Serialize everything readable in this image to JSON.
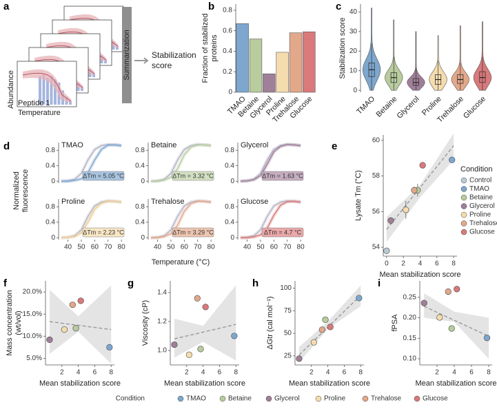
{
  "chart_data": [
    {
      "type": "schematic",
      "panel": "a",
      "labels": [
        "Abundance",
        "Peptide 1",
        "Temperature"
      ],
      "summary": "Summarization",
      "output": [
        "Stabilization",
        "score"
      ]
    },
    {
      "type": "bar",
      "panel": "b",
      "ylabel": [
        "Fraction of stabilized",
        "proteins"
      ],
      "categories": [
        "TMAO",
        "Betaine",
        "Glycerol",
        "Proline",
        "Trehalose",
        "Glucose"
      ],
      "values": [
        0.67,
        0.52,
        0.18,
        0.39,
        0.58,
        0.59
      ],
      "colors": [
        "#7ea7cf",
        "#b8cc9e",
        "#a07f98",
        "#f5dcae",
        "#e3a88a",
        "#d9797b"
      ],
      "ylim": [
        0,
        0.86
      ],
      "yticks": [
        0,
        0.2,
        0.4,
        0.6,
        0.8
      ]
    },
    {
      "type": "violin",
      "panel": "c",
      "ylabel": "Stabilization score",
      "categories": [
        "TMAO",
        "Betaine",
        "Glycerol",
        "Proline",
        "Trehalose",
        "Glucose"
      ],
      "colors": [
        "#7ea7cf",
        "#b8cc9e",
        "#a07f98",
        "#f5dcae",
        "#e3a88a",
        "#d9797b"
      ],
      "whisker_low": [
        0,
        0,
        0,
        0,
        0,
        0
      ],
      "q1": [
        7,
        4,
        2.5,
        3,
        3.5,
        4
      ],
      "median": [
        10.5,
        6.5,
        4,
        5.5,
        5.5,
        6.5
      ],
      "q3": [
        14,
        9,
        6,
        8,
        8,
        9.5
      ],
      "whisker_high": [
        24,
        17,
        11,
        15,
        14,
        17
      ],
      "max": [
        42,
        36,
        30,
        28,
        33,
        35
      ],
      "ylim": [
        -1,
        44
      ],
      "yticks": [
        0,
        10,
        20,
        30,
        40
      ]
    },
    {
      "type": "line",
      "panel": "d",
      "title": "TMAO",
      "ylabel": [
        "Normalized",
        "fluorescence"
      ],
      "xlabel": "Temperature (°C)",
      "x": [
        35,
        40,
        45,
        50,
        55,
        60,
        65,
        70,
        75,
        80
      ],
      "series": [
        {
          "color": "#b3b3c6",
          "values": [
            0,
            0.01,
            0.05,
            0.2,
            0.55,
            0.82,
            0.92,
            0.95,
            0.94,
            0.92
          ]
        },
        {
          "color": "#7ea7cf",
          "values": [
            0,
            0,
            0.02,
            0.06,
            0.22,
            0.55,
            0.82,
            0.93,
            0.94,
            0.92
          ]
        }
      ],
      "annotation": "ΔTm = 5.05 °C",
      "annotation_color": "#a9c4e0",
      "xlim": [
        33,
        82
      ],
      "ylim": [
        -0.05,
        1.0
      ],
      "yticks": [
        0,
        0.4,
        0.8
      ]
    },
    {
      "type": "line",
      "title": "Betaine",
      "x": [
        35,
        40,
        45,
        50,
        55,
        60,
        65,
        70,
        75,
        80
      ],
      "series": [
        {
          "color": "#b3b3c6",
          "values": [
            0,
            0.01,
            0.05,
            0.2,
            0.55,
            0.82,
            0.92,
            0.95,
            0.94,
            0.92
          ]
        },
        {
          "color": "#b8cc9e",
          "values": [
            0,
            0,
            0.03,
            0.1,
            0.32,
            0.68,
            0.88,
            0.94,
            0.94,
            0.92
          ]
        }
      ],
      "annotation": "ΔTm = 3.32 °C",
      "annotation_color": "#d3e0c2",
      "xlim": [
        33,
        82
      ],
      "ylim": [
        -0.05,
        1.0
      ],
      "yticks": [
        0,
        0.4,
        0.8
      ]
    },
    {
      "type": "line",
      "title": "Glycerol",
      "x": [
        35,
        40,
        45,
        50,
        55,
        60,
        65,
        70,
        75,
        80
      ],
      "series": [
        {
          "color": "#b3b3c6",
          "values": [
            0,
            0.01,
            0.05,
            0.2,
            0.55,
            0.82,
            0.92,
            0.95,
            0.94,
            0.92
          ]
        },
        {
          "color": "#a07f98",
          "values": [
            0,
            0.01,
            0.04,
            0.14,
            0.44,
            0.76,
            0.9,
            0.95,
            0.94,
            0.92
          ]
        }
      ],
      "annotation": "ΔTm = 1.63 °C",
      "annotation_color": "#c6adc0",
      "xlim": [
        33,
        82
      ],
      "ylim": [
        -0.05,
        1.0
      ],
      "yticks": [
        0,
        0.4,
        0.8
      ]
    },
    {
      "type": "line",
      "title": "Proline",
      "x": [
        35,
        40,
        45,
        50,
        55,
        60,
        65,
        70,
        75,
        80
      ],
      "series": [
        {
          "color": "#b3b3c6",
          "values": [
            0,
            0.01,
            0.05,
            0.2,
            0.55,
            0.82,
            0.92,
            0.95,
            0.94,
            0.92
          ]
        },
        {
          "color": "#f0cf92",
          "values": [
            0,
            0.01,
            0.03,
            0.12,
            0.4,
            0.73,
            0.89,
            0.94,
            0.94,
            0.92
          ]
        }
      ],
      "annotation": "ΔTm = 2.23 °C",
      "annotation_color": "#f8e6c4",
      "xlim": [
        33,
        82
      ],
      "ylim": [
        -0.05,
        1.0
      ],
      "yticks": [
        0,
        0.4,
        0.8
      ],
      "xticks": [
        40,
        50,
        60,
        70,
        80
      ]
    },
    {
      "type": "line",
      "title": "Trehalose",
      "x": [
        35,
        40,
        45,
        50,
        55,
        60,
        65,
        70,
        75,
        80
      ],
      "series": [
        {
          "color": "#b3b3c6",
          "values": [
            0,
            0.01,
            0.05,
            0.2,
            0.55,
            0.82,
            0.92,
            0.95,
            0.94,
            0.92
          ]
        },
        {
          "color": "#e3a88a",
          "values": [
            0,
            0,
            0.03,
            0.1,
            0.32,
            0.68,
            0.88,
            0.94,
            0.94,
            0.92
          ]
        }
      ],
      "annotation": "ΔTm = 3.29 °C",
      "annotation_color": "#eec5b0",
      "xlim": [
        33,
        82
      ],
      "ylim": [
        -0.05,
        1.0
      ],
      "yticks": [
        0,
        0.4,
        0.8
      ],
      "xticks": [
        40,
        50,
        60,
        70,
        80
      ]
    },
    {
      "type": "line",
      "title": "Glucose",
      "x": [
        35,
        40,
        45,
        50,
        55,
        60,
        65,
        70,
        75,
        80
      ],
      "series": [
        {
          "color": "#b3b3c6",
          "values": [
            0,
            0.01,
            0.05,
            0.2,
            0.55,
            0.82,
            0.92,
            0.95,
            0.94,
            0.92
          ]
        },
        {
          "color": "#d9797b",
          "values": [
            0,
            0,
            0.02,
            0.07,
            0.25,
            0.58,
            0.84,
            0.93,
            0.94,
            0.92
          ]
        }
      ],
      "annotation": "ΔTm = 4.7 °C",
      "annotation_color": "#eaa8a9",
      "xlim": [
        33,
        82
      ],
      "ylim": [
        -0.05,
        1.0
      ],
      "yticks": [
        0,
        0.4,
        0.8
      ],
      "xticks": [
        40,
        50,
        60,
        70,
        80
      ]
    },
    {
      "type": "scatter",
      "panel": "e",
      "ylabel": "Lysate Tm (°C)",
      "xlabel": "Mean stabilization score",
      "categories": [
        "Control",
        "TMAO",
        "Betaine",
        "Glycerol",
        "Proline",
        "Trehalose",
        "Glucose"
      ],
      "colors": [
        "#b9cbd3",
        "#7ea7cf",
        "#b8cc9e",
        "#a07f98",
        "#f5dcae",
        "#e3a88a",
        "#d9797b"
      ],
      "x": [
        0,
        7.8,
        3.7,
        0.5,
        2.3,
        3.3,
        4.3
      ],
      "values": [
        53.8,
        58.9,
        57.2,
        55.5,
        56.1,
        57.2,
        58.6
      ],
      "errors": [
        0.05,
        0.1,
        0.35,
        0.15,
        0.5,
        0.2,
        0.1
      ],
      "fit": {
        "x": [
          0,
          8
        ],
        "y": [
          55.0,
          59.7
        ]
      },
      "band": {
        "x": [
          0,
          4,
          8
        ],
        "lower": [
          54.3,
          56.8,
          58.9
        ],
        "upper": [
          55.7,
          57.5,
          60.4
        ]
      },
      "xlim": [
        -0.4,
        8.4
      ],
      "xticks": [
        0,
        2,
        4,
        6,
        8
      ],
      "ylim": [
        53.5,
        60.3
      ],
      "yticks": [
        54,
        56,
        58,
        60
      ],
      "legend_title": "Condition",
      "legend": "right"
    },
    {
      "type": "scatter",
      "panel": "f",
      "ylabel": [
        "Mass concentration",
        "(wt/vol)"
      ],
      "xlabel": "Mean stabilization score",
      "colors": [
        "#7ea7cf",
        "#b8cc9e",
        "#a07f98",
        "#f5dcae",
        "#e3a88a",
        "#d9797b"
      ],
      "x": [
        7.8,
        3.7,
        0.5,
        2.3,
        3.3,
        4.3
      ],
      "values": [
        7.5,
        11.8,
        9.2,
        11.5,
        17.1,
        18.0
      ],
      "fit": {
        "x": [
          0.5,
          8
        ],
        "y": [
          13.3,
          11.5
        ]
      },
      "band": {
        "x": [
          0.5,
          4,
          8
        ],
        "lower": [
          6,
          11,
          3.8
        ],
        "upper": [
          20.5,
          14.5,
          21.5
        ]
      },
      "xlim": [
        0,
        8.4
      ],
      "xticks": [
        2,
        4,
        6,
        8
      ],
      "ylim": [
        3.5,
        22.5
      ],
      "yticks": [
        {
          "value": 5,
          "label": "5.0%"
        },
        {
          "value": 10,
          "label": "10.0%"
        },
        {
          "value": 15,
          "label": "15.0%"
        },
        {
          "value": 20,
          "label": "20.0%"
        }
      ]
    },
    {
      "type": "scatter",
      "panel": "g",
      "ylabel": "Viscosity (cP)",
      "xlabel": "Mean stabilization score",
      "colors": [
        "#7ea7cf",
        "#b8cc9e",
        "#a07f98",
        "#f5dcae",
        "#e3a88a",
        "#d9797b"
      ],
      "x": [
        7.8,
        3.7,
        0.5,
        2.3,
        3.3,
        4.3
      ],
      "values": [
        1.1,
        1.01,
        1.04,
        0.97,
        1.36,
        1.3
      ],
      "fit": {
        "x": [
          0.5,
          8
        ],
        "y": [
          1.08,
          1.18
        ]
      },
      "band": {
        "x": [
          0.5,
          4,
          8
        ],
        "lower": [
          0.95,
          1.06,
          0.93
        ],
        "upper": [
          1.22,
          1.17,
          1.45
        ]
      },
      "xlim": [
        0,
        8.4
      ],
      "xticks": [
        2,
        4,
        6,
        8
      ],
      "ylim": [
        0.9,
        1.48
      ],
      "yticks": [
        {
          "value": 1,
          "label": "1.0"
        },
        1.2,
        1.4
      ]
    },
    {
      "type": "scatter",
      "panel": "h",
      "ylabel": "ΔGtr (cal mol⁻¹)",
      "xlabel": "Mean stabilization score",
      "colors": [
        "#7ea7cf",
        "#b8cc9e",
        "#a07f98",
        "#f5dcae",
        "#e3a88a",
        "#d9797b"
      ],
      "x": [
        7.8,
        3.7,
        0.5,
        2.3,
        3.3,
        4.3
      ],
      "values": [
        89,
        65,
        22,
        40,
        54,
        57
      ],
      "fit": {
        "x": [
          0.5,
          8
        ],
        "y": [
          26,
          92
        ]
      },
      "band": {
        "x": [
          0.5,
          4,
          8
        ],
        "lower": [
          18,
          55,
          80
        ],
        "upper": [
          35,
          63,
          103
        ]
      },
      "xlim": [
        0,
        8.4
      ],
      "xticks": [
        2,
        4,
        6,
        8
      ],
      "ylim": [
        15,
        108
      ],
      "yticks": [
        25,
        50,
        75,
        100
      ]
    },
    {
      "type": "scatter",
      "panel": "i",
      "ylabel": "fPSA",
      "xlabel": "Mean stabilization score",
      "colors": [
        "#7ea7cf",
        "#b8cc9e",
        "#a07f98",
        "#f5dcae",
        "#e3a88a",
        "#d9797b"
      ],
      "x": [
        7.8,
        3.7,
        0.5,
        2.3,
        3.3,
        4.3
      ],
      "values": [
        0.151,
        0.174,
        0.236,
        0.201,
        0.264,
        0.27
      ],
      "fit": {
        "x": [
          0.5,
          8
        ],
        "y": [
          0.228,
          0.155
        ]
      },
      "band": {
        "x": [
          0.5,
          4,
          8
        ],
        "lower": [
          0.2,
          0.19,
          0.1
        ],
        "upper": [
          0.26,
          0.215,
          0.2
        ]
      },
      "xlim": [
        0,
        8.4
      ],
      "xticks": [
        2,
        4,
        6,
        8
      ],
      "ylim": [
        0.085,
        0.29
      ],
      "yticks": [
        {
          "value": 0.1,
          "label": "0.10"
        },
        0.15,
        {
          "value": 0.2,
          "label": "0.20"
        },
        0.25
      ]
    },
    {
      "type": "legend",
      "title": "Condition",
      "items": [
        "TMAO",
        "Betaine",
        "Glycerol",
        "Proline",
        "Trehalose",
        "Glucose"
      ],
      "colors": [
        "#7ea7cf",
        "#b8cc9e",
        "#a07f98",
        "#f5dcae",
        "#e3a88a",
        "#d9797b"
      ]
    }
  ]
}
